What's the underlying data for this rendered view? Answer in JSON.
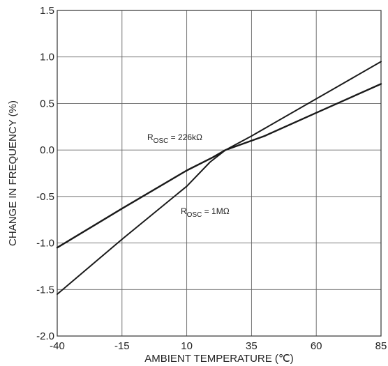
{
  "chart_data": {
    "type": "line",
    "xlabel": "AMBIENT TEMPERATURE (℃)",
    "ylabel": "CHANGE IN FREQUENCY (%)",
    "xlim": [
      -40,
      85
    ],
    "ylim": [
      -2.0,
      1.5
    ],
    "x_ticks": [
      "-40",
      "-15",
      "10",
      "35",
      "60",
      "85"
    ],
    "y_ticks": [
      "1.5",
      "1.0",
      "0.5",
      "0.0",
      "-0.5",
      "-1.0",
      "-1.5",
      "-2.0"
    ],
    "x_tick_values": [
      -40,
      -15,
      10,
      35,
      60,
      85
    ],
    "y_tick_values": [
      1.5,
      1.0,
      0.5,
      0.0,
      -0.5,
      -1.0,
      -1.5,
      -2.0
    ],
    "grid": true,
    "line_color": "#1a1a1a",
    "series": [
      {
        "label_main": "R",
        "label_sub": "OSC",
        "label_value": " = 226kΩ",
        "x": [
          -40,
          -15,
          10,
          20,
          25,
          40,
          60,
          85
        ],
        "y": [
          -1.05,
          -0.63,
          -0.22,
          -0.08,
          0.0,
          0.15,
          0.4,
          0.71
        ]
      },
      {
        "label_main": "R",
        "label_sub": "OSC",
        "label_value": " = 1MΩ",
        "x": [
          -40,
          -15,
          10,
          19,
          25,
          35,
          60,
          85
        ],
        "y": [
          -1.55,
          -0.96,
          -0.39,
          -0.13,
          0.0,
          0.15,
          0.55,
          0.95
        ]
      }
    ]
  }
}
